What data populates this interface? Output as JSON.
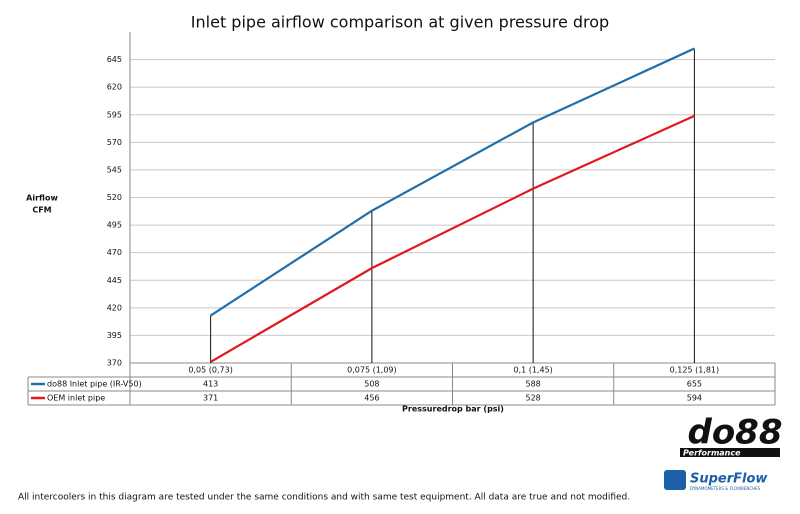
{
  "chart_data": {
    "type": "line",
    "title": "Inlet pipe airflow comparison at given pressure drop",
    "y_label": [
      "Airflow",
      "CFM"
    ],
    "x_label": "Pressuredrop bar (psi)",
    "categories": [
      "0,05 (0,73)",
      "0,075 (1,09)",
      "0,1 (1,45)",
      "0,125 (1,81)"
    ],
    "series": [
      {
        "name": "do88 Inlet pipe (IR-V50)",
        "color": "#1f6fad",
        "values": [
          413,
          508,
          588,
          655
        ]
      },
      {
        "name": "OEM inlet pipe",
        "color": "#e0191e",
        "values": [
          371,
          456,
          528,
          594
        ]
      }
    ],
    "ylim": [
      370,
      670
    ],
    "yticks": [
      370,
      395,
      420,
      445,
      470,
      495,
      520,
      545,
      570,
      595,
      620,
      645
    ],
    "grid": true,
    "drop_lines": true,
    "footnote": "All intercoolers in this diagram are tested under the same conditions and with same test equipment. All data are true and not modified.",
    "logos": {
      "do88": "do88",
      "do88_sub": "Performance",
      "superflow": "SuperFlow",
      "superflow_sub": "DYNAMOMETERS & FLOWBENCHES"
    }
  }
}
